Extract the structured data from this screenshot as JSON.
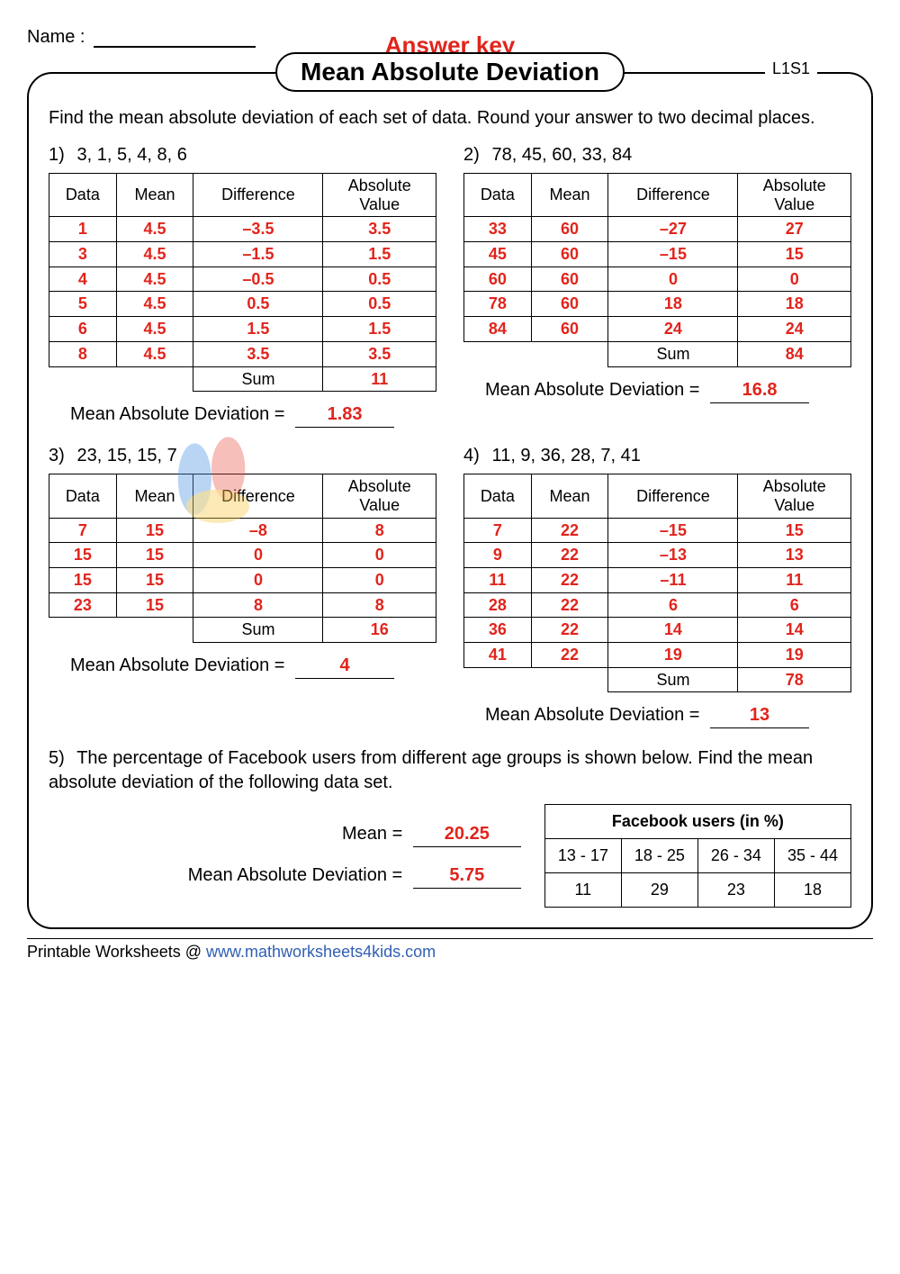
{
  "name_label": "Name :",
  "answer_key": "Answer key",
  "title": "Mean Absolute Deviation",
  "code": "L1S1",
  "instruction": "Find the mean absolute deviation of each set of data. Round your answer to two decimal places.",
  "columns": [
    "Data",
    "Mean",
    "Difference",
    "Absolute Value"
  ],
  "sum_label": "Sum",
  "mad_label": "Mean Absolute Deviation  =",
  "colors": {
    "answer": "#e1241c",
    "text": "#000000",
    "link": "#2f5fb3",
    "border": "#000000",
    "background": "#ffffff"
  },
  "problems": [
    {
      "n": "1)",
      "list": "3,  1,  5,  4,  8,  6",
      "rows": [
        [
          "1",
          "4.5",
          "–3.5",
          "3.5"
        ],
        [
          "3",
          "4.5",
          "–1.5",
          "1.5"
        ],
        [
          "4",
          "4.5",
          "–0.5",
          "0.5"
        ],
        [
          "5",
          "4.5",
          "0.5",
          "0.5"
        ],
        [
          "6",
          "4.5",
          "1.5",
          "1.5"
        ],
        [
          "8",
          "4.5",
          "3.5",
          "3.5"
        ]
      ],
      "sum": "11",
      "mad": "1.83"
    },
    {
      "n": "2)",
      "list": "78,  45,  60,  33,  84",
      "rows": [
        [
          "33",
          "60",
          "–27",
          "27"
        ],
        [
          "45",
          "60",
          "–15",
          "15"
        ],
        [
          "60",
          "60",
          "0",
          "0"
        ],
        [
          "78",
          "60",
          "18",
          "18"
        ],
        [
          "84",
          "60",
          "24",
          "24"
        ]
      ],
      "sum": "84",
      "mad": "16.8"
    },
    {
      "n": "3)",
      "list": "23,  15,  15,  7",
      "rows": [
        [
          "7",
          "15",
          "–8",
          "8"
        ],
        [
          "15",
          "15",
          "0",
          "0"
        ],
        [
          "15",
          "15",
          "0",
          "0"
        ],
        [
          "23",
          "15",
          "8",
          "8"
        ]
      ],
      "sum": "16",
      "mad": "4"
    },
    {
      "n": "4)",
      "list": "11,  9,  36,  28,  7,  41",
      "rows": [
        [
          "7",
          "22",
          "–15",
          "15"
        ],
        [
          "9",
          "22",
          "–13",
          "13"
        ],
        [
          "11",
          "22",
          "–11",
          "11"
        ],
        [
          "28",
          "22",
          "6",
          "6"
        ],
        [
          "36",
          "22",
          "14",
          "14"
        ],
        [
          "41",
          "22",
          "19",
          "19"
        ]
      ],
      "sum": "78",
      "mad": "13"
    }
  ],
  "q5": {
    "n": "5)",
    "text": "The percentage of Facebook users from different age groups is shown below. Find the mean absolute deviation of the following data set.",
    "mean_label": "Mean  =",
    "mean": "20.25",
    "mad": "5.75",
    "table_title": "Facebook users (in %)",
    "headers": [
      "13 - 17",
      "18 - 25",
      "26 - 34",
      "35 - 44"
    ],
    "values": [
      "11",
      "29",
      "23",
      "18"
    ]
  },
  "footer_prefix": "Printable Worksheets @ ",
  "footer_link": "www.mathworksheets4kids.com"
}
